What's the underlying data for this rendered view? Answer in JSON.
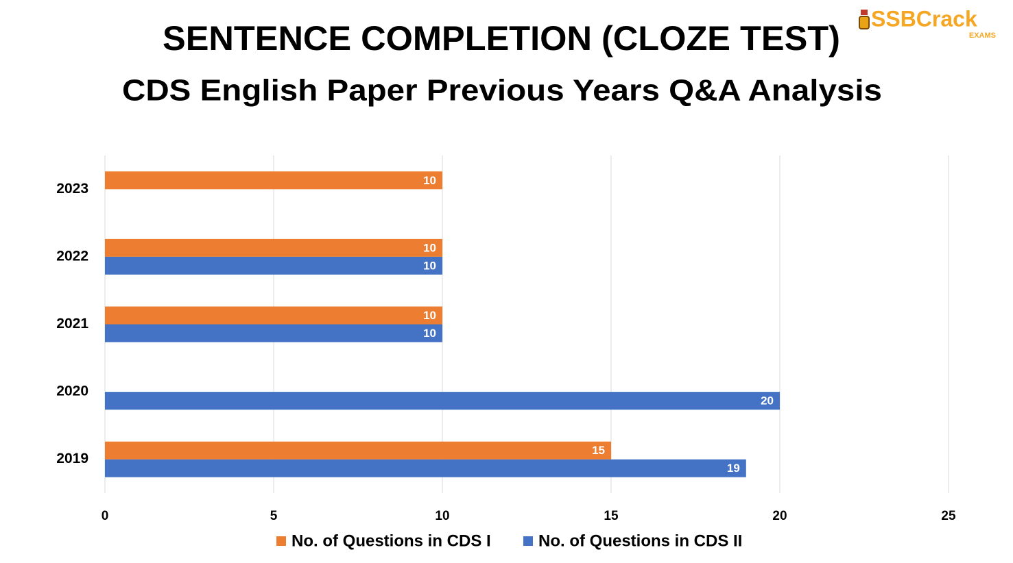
{
  "logo": {
    "name": "SSBCrack",
    "tag": "EXAMS"
  },
  "chart_data": {
    "type": "bar",
    "orientation": "horizontal",
    "title": "SENTENCE COMPLETION (CLOZE TEST)",
    "subtitle": "CDS English Paper Previous Years Q&A Analysis",
    "categories": [
      "2023",
      "2022",
      "2021",
      "2020",
      "2019"
    ],
    "series": [
      {
        "name": "No. of Questions in CDS I",
        "color": "#ed7d31",
        "values": [
          10,
          10,
          10,
          null,
          15
        ]
      },
      {
        "name": "No. of Questions in CDS II",
        "color": "#4472c4",
        "values": [
          null,
          10,
          10,
          20,
          19
        ]
      }
    ],
    "xlim": [
      0,
      25
    ],
    "xticks": [
      0,
      5,
      10,
      15,
      20,
      25
    ],
    "grid": true,
    "legend": "bottom"
  }
}
